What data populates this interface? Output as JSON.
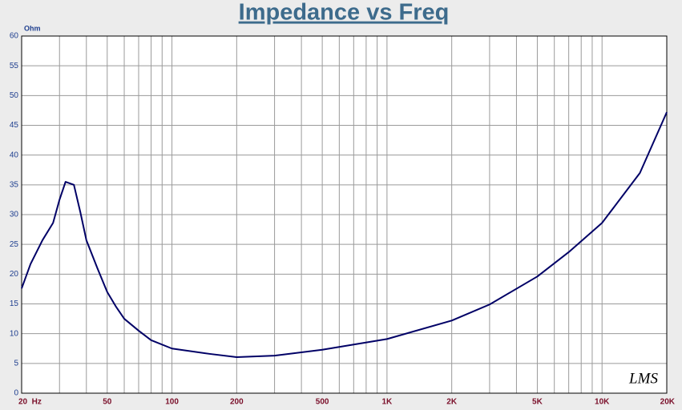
{
  "chart_data": {
    "type": "line",
    "title": "Impedance vs Freq",
    "y_unit": "Ohm",
    "signature": "LMS",
    "x": [
      20,
      22,
      25,
      28,
      30,
      32,
      35,
      37.5,
      40,
      45,
      50,
      55,
      60,
      70,
      80,
      100,
      150,
      200,
      300,
      500,
      1000,
      2000,
      3000,
      5000,
      7000,
      10000,
      15000,
      20000
    ],
    "series": [
      {
        "name": "Impedance",
        "color": "#000066",
        "values": [
          17.6,
          21.7,
          25.7,
          28.6,
          32.5,
          35.5,
          35.0,
          30.4,
          25.7,
          21,
          17,
          14.5,
          12.5,
          10.5,
          8.9,
          7.5,
          6.6,
          6.05,
          6.3,
          7.3,
          9.1,
          12.2,
          14.9,
          19.6,
          23.7,
          28.6,
          37,
          47.2
        ]
      }
    ],
    "x_log": true,
    "xlim": [
      20,
      20000
    ],
    "xticks": [
      {
        "value": 20,
        "label": "20  Hz"
      },
      50,
      100,
      200,
      500,
      {
        "value": 1000,
        "label": "1K"
      },
      {
        "value": 2000,
        "label": "2K"
      },
      {
        "value": 5000,
        "label": "5K"
      },
      {
        "value": 10000,
        "label": "10K"
      },
      {
        "value": 20000,
        "label": "20K"
      }
    ],
    "xgrid": [
      30,
      40,
      60,
      70,
      80,
      90,
      300,
      400,
      600,
      700,
      800,
      900,
      3000,
      4000,
      6000,
      7000,
      8000,
      9000
    ],
    "ylim": [
      0,
      60
    ],
    "yticks": [
      0,
      5,
      10,
      15,
      20,
      25,
      30,
      35,
      40,
      45,
      50,
      55,
      60
    ],
    "grid": true
  }
}
